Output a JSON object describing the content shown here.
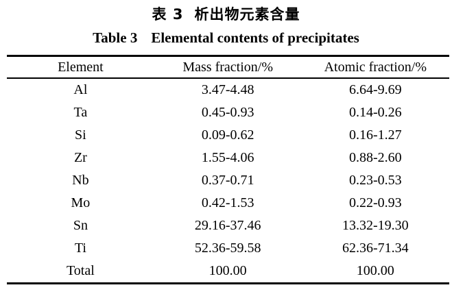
{
  "page": {
    "background_color": "#ffffff",
    "text_color": "#000000"
  },
  "titles": {
    "chinese_label": "表 3",
    "chinese_text": "析出物元素含量",
    "english_label": "Table 3",
    "english_text": "Elemental contents of precipitates"
  },
  "table": {
    "columns": [
      "Element",
      "Mass fraction/%",
      "Atomic fraction/%"
    ],
    "rows": [
      {
        "element": "Al",
        "mass": "3.47-4.48",
        "atomic": "6.64-9.69"
      },
      {
        "element": "Ta",
        "mass": "0.45-0.93",
        "atomic": "0.14-0.26"
      },
      {
        "element": "Si",
        "mass": "0.09-0.62",
        "atomic": "0.16-1.27"
      },
      {
        "element": "Zr",
        "mass": "1.55-4.06",
        "atomic": "0.88-2.60"
      },
      {
        "element": "Nb",
        "mass": "0.37-0.71",
        "atomic": "0.23-0.53"
      },
      {
        "element": "Mo",
        "mass": "0.42-1.53",
        "atomic": "0.22-0.93"
      },
      {
        "element": "Sn",
        "mass": "29.16-37.46",
        "atomic": "13.32-19.30"
      },
      {
        "element": "Ti",
        "mass": "52.36-59.58",
        "atomic": "62.36-71.34"
      },
      {
        "element": "Total",
        "mass": "100.00",
        "atomic": "100.00"
      }
    ]
  },
  "chart_data": {
    "type": "table",
    "title": "Table 3  Elemental contents of precipitates",
    "columns": [
      "Element",
      "Mass fraction/%",
      "Atomic fraction/%"
    ],
    "rows": [
      [
        "Al",
        "3.47-4.48",
        "6.64-9.69"
      ],
      [
        "Ta",
        "0.45-0.93",
        "0.14-0.26"
      ],
      [
        "Si",
        "0.09-0.62",
        "0.16-1.27"
      ],
      [
        "Zr",
        "1.55-4.06",
        "0.88-2.60"
      ],
      [
        "Nb",
        "0.37-0.71",
        "0.23-0.53"
      ],
      [
        "Mo",
        "0.42-1.53",
        "0.22-0.93"
      ],
      [
        "Sn",
        "29.16-37.46",
        "13.32-19.30"
      ],
      [
        "Ti",
        "52.36-59.58",
        "62.36-71.34"
      ],
      [
        "Total",
        "100.00",
        "100.00"
      ]
    ]
  }
}
